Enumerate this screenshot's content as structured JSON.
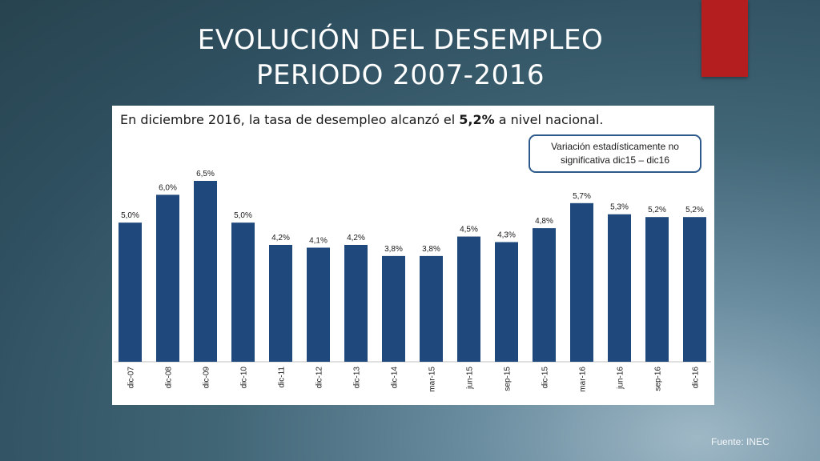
{
  "slide": {
    "title_line1": "EVOLUCIÓN DEL DESEMPLEO",
    "title_line2": "PERIODO 2007-2016",
    "source": "Fuente: INEC"
  },
  "chart": {
    "headline_pre": "En diciembre 2016, la tasa de desempleo alcanzó el ",
    "headline_bold": "5,2%",
    "headline_post": " a nivel nacional.",
    "note_line1": "Variación estadísticamente no",
    "note_line2": "significativa dic15 – dic16"
  },
  "colors": {
    "bar": "#1f497d",
    "accent": "#b41e1e"
  },
  "chart_data": {
    "type": "bar",
    "title": "En diciembre 2016, la tasa de desempleo alcanzó el 5,2% a nivel nacional.",
    "xlabel": "",
    "ylabel": "",
    "categories": [
      "dic-07",
      "dic-08",
      "dic-09",
      "dic-10",
      "dic-11",
      "dic-12",
      "dic-13",
      "dic-14",
      "mar-15",
      "jun-15",
      "sep-15",
      "dic-15",
      "mar-16",
      "jun-16",
      "sep-16",
      "dic-16"
    ],
    "values": [
      5.0,
      6.0,
      6.5,
      5.0,
      4.2,
      4.1,
      4.2,
      3.8,
      3.8,
      4.5,
      4.3,
      4.8,
      5.7,
      5.3,
      5.2,
      5.2
    ],
    "data_labels": [
      "5,0%",
      "6,0%",
      "6,5%",
      "5,0%",
      "4,2%",
      "4,1%",
      "4,2%",
      "3,8%",
      "3,8%",
      "4,5%",
      "4,3%",
      "4,8%",
      "5,7%",
      "5,3%",
      "5,2%",
      "5,2%"
    ],
    "ylim": [
      0,
      6.5
    ],
    "grid": false,
    "legend": "none"
  }
}
